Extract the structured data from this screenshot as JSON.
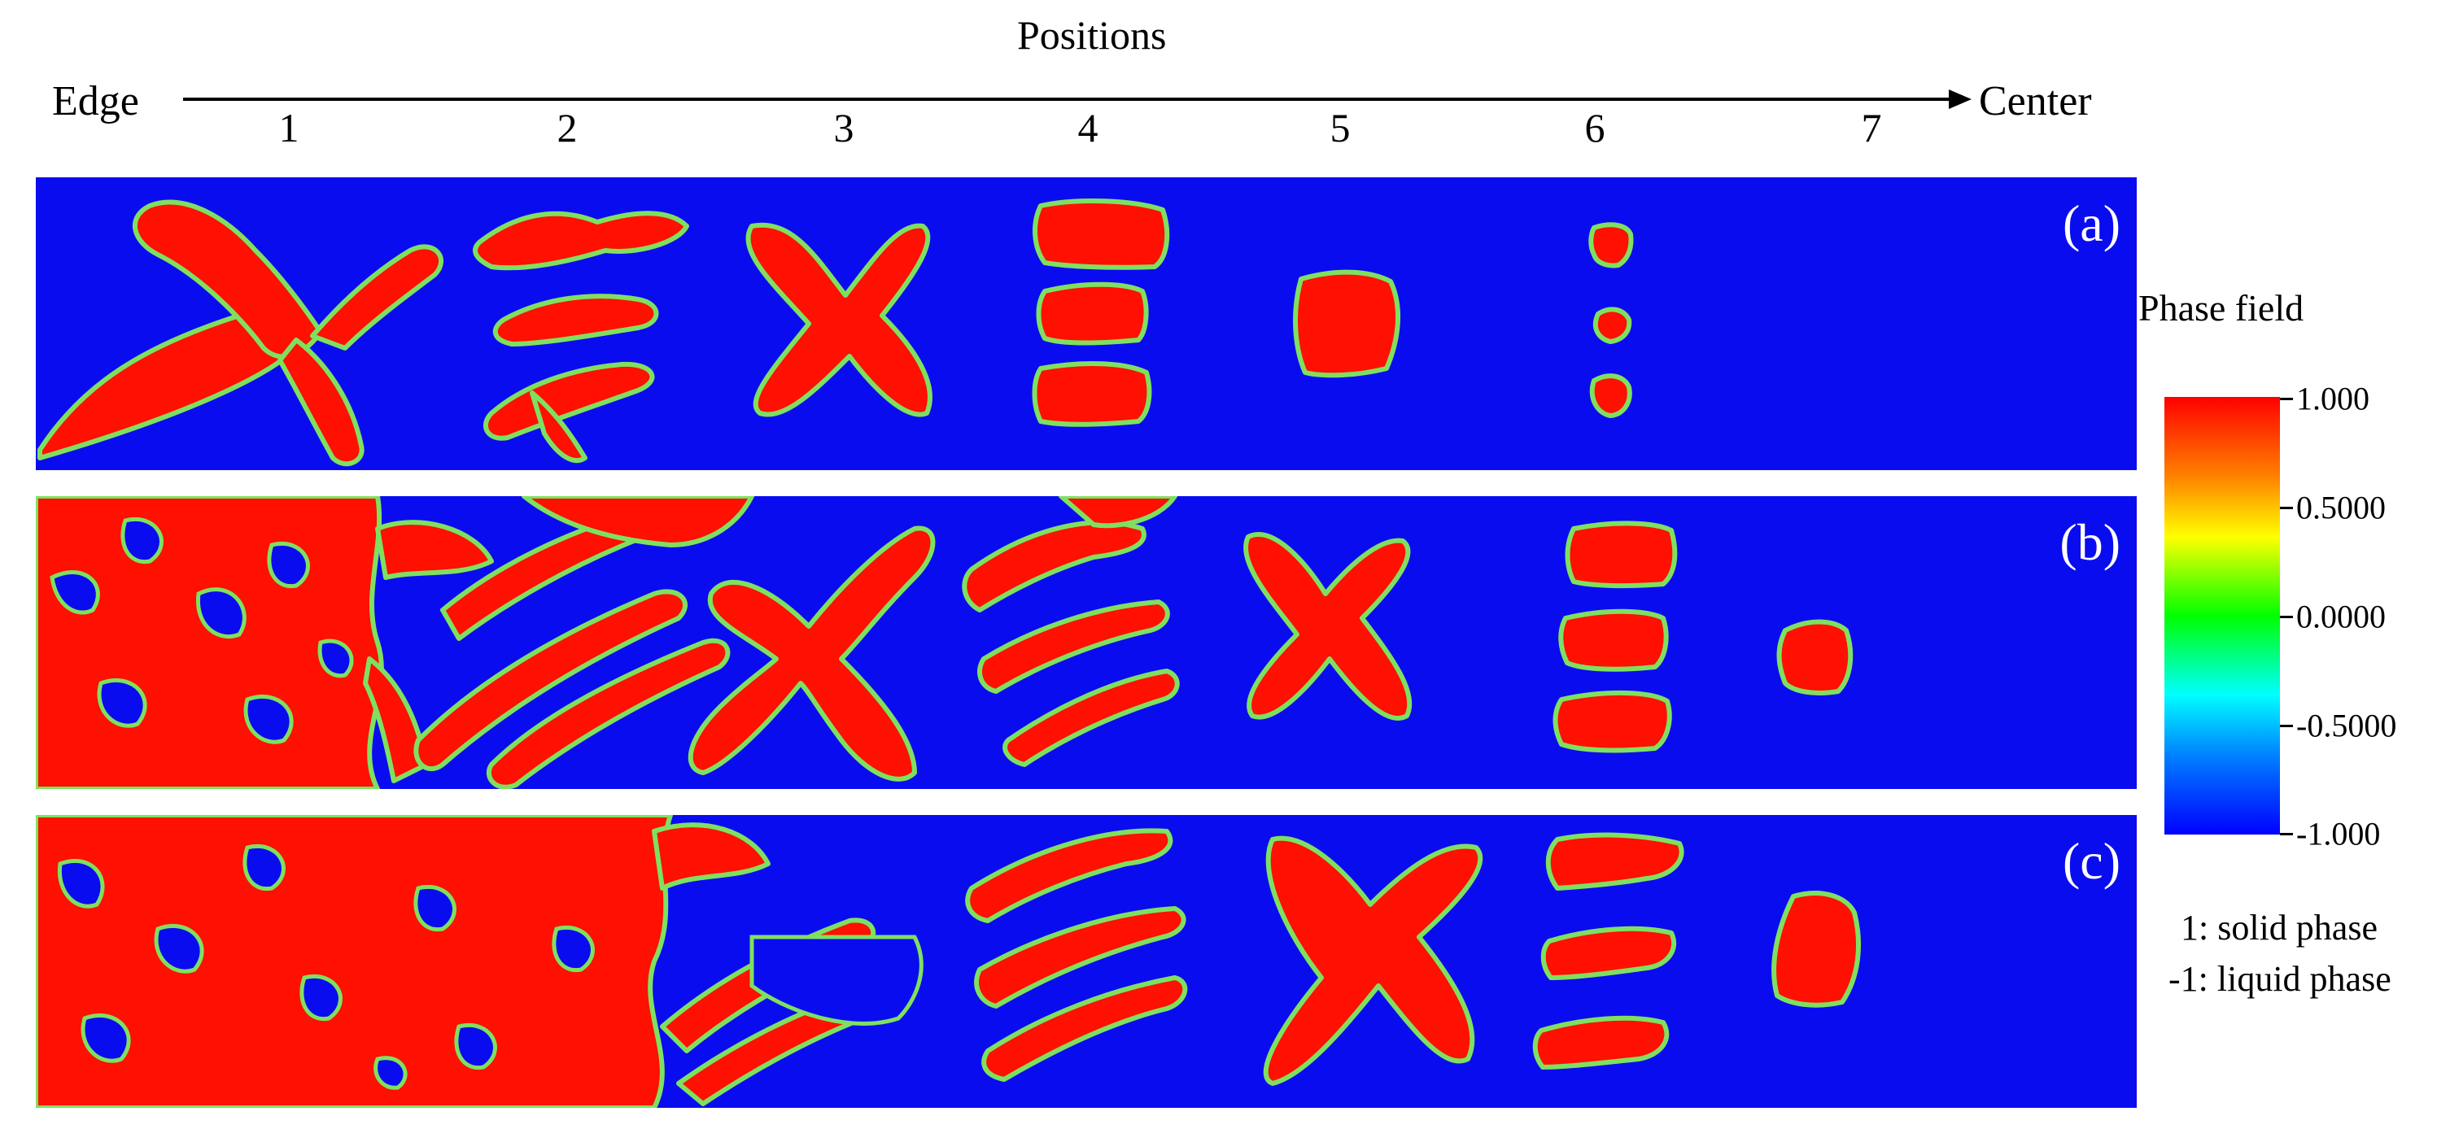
{
  "header": {
    "title": "Positions",
    "left_label": "Edge",
    "right_label": "Center",
    "positions": [
      "1",
      "2",
      "3",
      "4",
      "5",
      "6",
      "7"
    ]
  },
  "panels": [
    {
      "label": "(a)"
    },
    {
      "label": "(b)"
    },
    {
      "label": "(c)"
    }
  ],
  "legend": {
    "title": "Phase field",
    "ticks": [
      "1.000",
      "0.5000",
      "0.0000",
      "-0.5000",
      "-1.000"
    ],
    "notes": [
      "1: solid phase",
      "-1: liquid phase"
    ]
  },
  "colors": {
    "solid": "#ff1000",
    "liquid": "#0a0cf0",
    "interface": "#7fe060"
  }
}
